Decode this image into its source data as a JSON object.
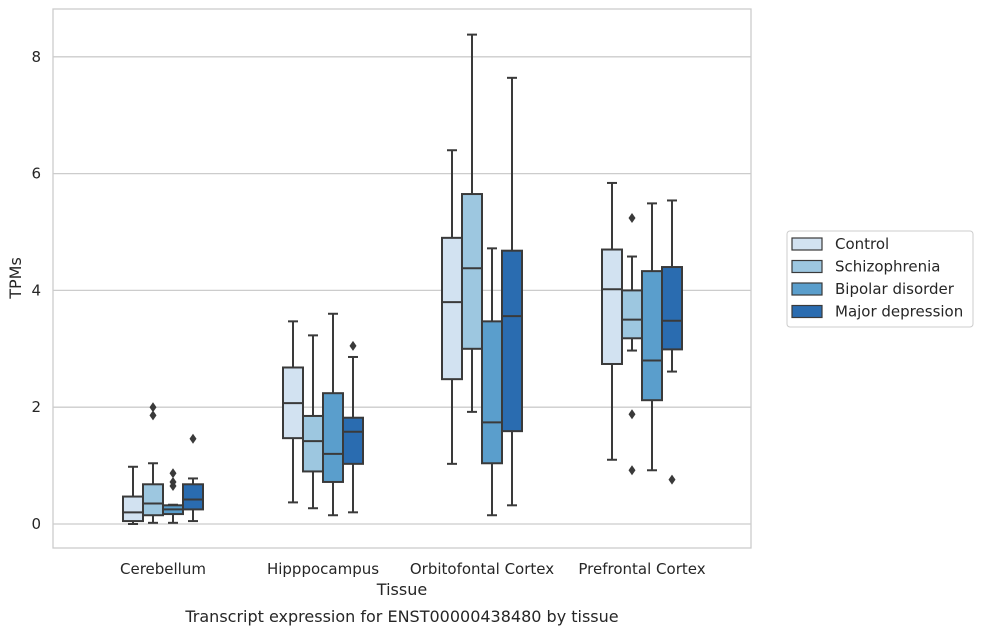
{
  "caption": "Transcript expression for ENST00000438480 by tissue",
  "chart_data": {
    "type": "box",
    "xlabel": "Tissue",
    "ylabel": "TPMs",
    "ylim": [
      -0.4,
      8.8
    ],
    "yticks": [
      0,
      2,
      4,
      6,
      8
    ],
    "grid": true,
    "legend_position": "right",
    "categories": [
      "Cerebellum",
      "Hipppocampus",
      "Orbitofontal Cortex",
      "Prefrontal Cortex"
    ],
    "series": [
      {
        "name": "Control",
        "color": "#d2e2f1",
        "boxes": [
          {
            "whislo": 0.0,
            "q1": 0.05,
            "med": 0.2,
            "q3": 0.47,
            "whishi": 0.98,
            "fliers": []
          },
          {
            "whislo": 0.37,
            "q1": 1.47,
            "med": 2.07,
            "q3": 2.68,
            "whishi": 3.47,
            "fliers": []
          },
          {
            "whislo": 1.03,
            "q1": 2.48,
            "med": 3.8,
            "q3": 4.9,
            "whishi": 6.4,
            "fliers": []
          },
          {
            "whislo": 1.1,
            "q1": 2.74,
            "med": 4.02,
            "q3": 4.7,
            "whishi": 5.84,
            "fliers": []
          }
        ]
      },
      {
        "name": "Schizophrenia",
        "color": "#9dc7e0",
        "boxes": [
          {
            "whislo": 0.02,
            "q1": 0.15,
            "med": 0.35,
            "q3": 0.68,
            "whishi": 1.04,
            "fliers": [
              1.86,
              2.0
            ]
          },
          {
            "whislo": 0.27,
            "q1": 0.9,
            "med": 1.42,
            "q3": 1.85,
            "whishi": 3.23,
            "fliers": []
          },
          {
            "whislo": 1.92,
            "q1": 3.0,
            "med": 4.38,
            "q3": 5.65,
            "whishi": 8.38,
            "fliers": []
          },
          {
            "whislo": 2.97,
            "q1": 3.18,
            "med": 3.5,
            "q3": 4.0,
            "whishi": 4.58,
            "fliers": [
              0.92,
              1.88,
              5.24
            ]
          }
        ]
      },
      {
        "name": "Bipolar disorder",
        "color": "#5a9ecc",
        "boxes": [
          {
            "whislo": 0.02,
            "q1": 0.17,
            "med": 0.25,
            "q3": 0.32,
            "whishi": 0.33,
            "fliers": [
              0.65,
              0.72,
              0.87
            ]
          },
          {
            "whislo": 0.15,
            "q1": 0.72,
            "med": 1.2,
            "q3": 2.24,
            "whishi": 3.6,
            "fliers": []
          },
          {
            "whislo": 0.15,
            "q1": 1.04,
            "med": 1.74,
            "q3": 3.47,
            "whishi": 4.72,
            "fliers": []
          },
          {
            "whislo": 0.92,
            "q1": 2.12,
            "med": 2.8,
            "q3": 4.33,
            "whishi": 5.49,
            "fliers": []
          }
        ]
      },
      {
        "name": "Major depression",
        "color": "#2a6cb0",
        "boxes": [
          {
            "whislo": 0.05,
            "q1": 0.25,
            "med": 0.42,
            "q3": 0.68,
            "whishi": 0.78,
            "fliers": [
              1.46
            ]
          },
          {
            "whislo": 0.2,
            "q1": 1.03,
            "med": 1.58,
            "q3": 1.82,
            "whishi": 2.86,
            "fliers": [
              3.05
            ]
          },
          {
            "whislo": 0.32,
            "q1": 1.59,
            "med": 3.56,
            "q3": 4.68,
            "whishi": 7.64,
            "fliers": []
          },
          {
            "whislo": 2.61,
            "q1": 2.99,
            "med": 3.48,
            "q3": 4.4,
            "whishi": 5.54,
            "fliers": [
              0.76
            ]
          }
        ]
      }
    ]
  }
}
